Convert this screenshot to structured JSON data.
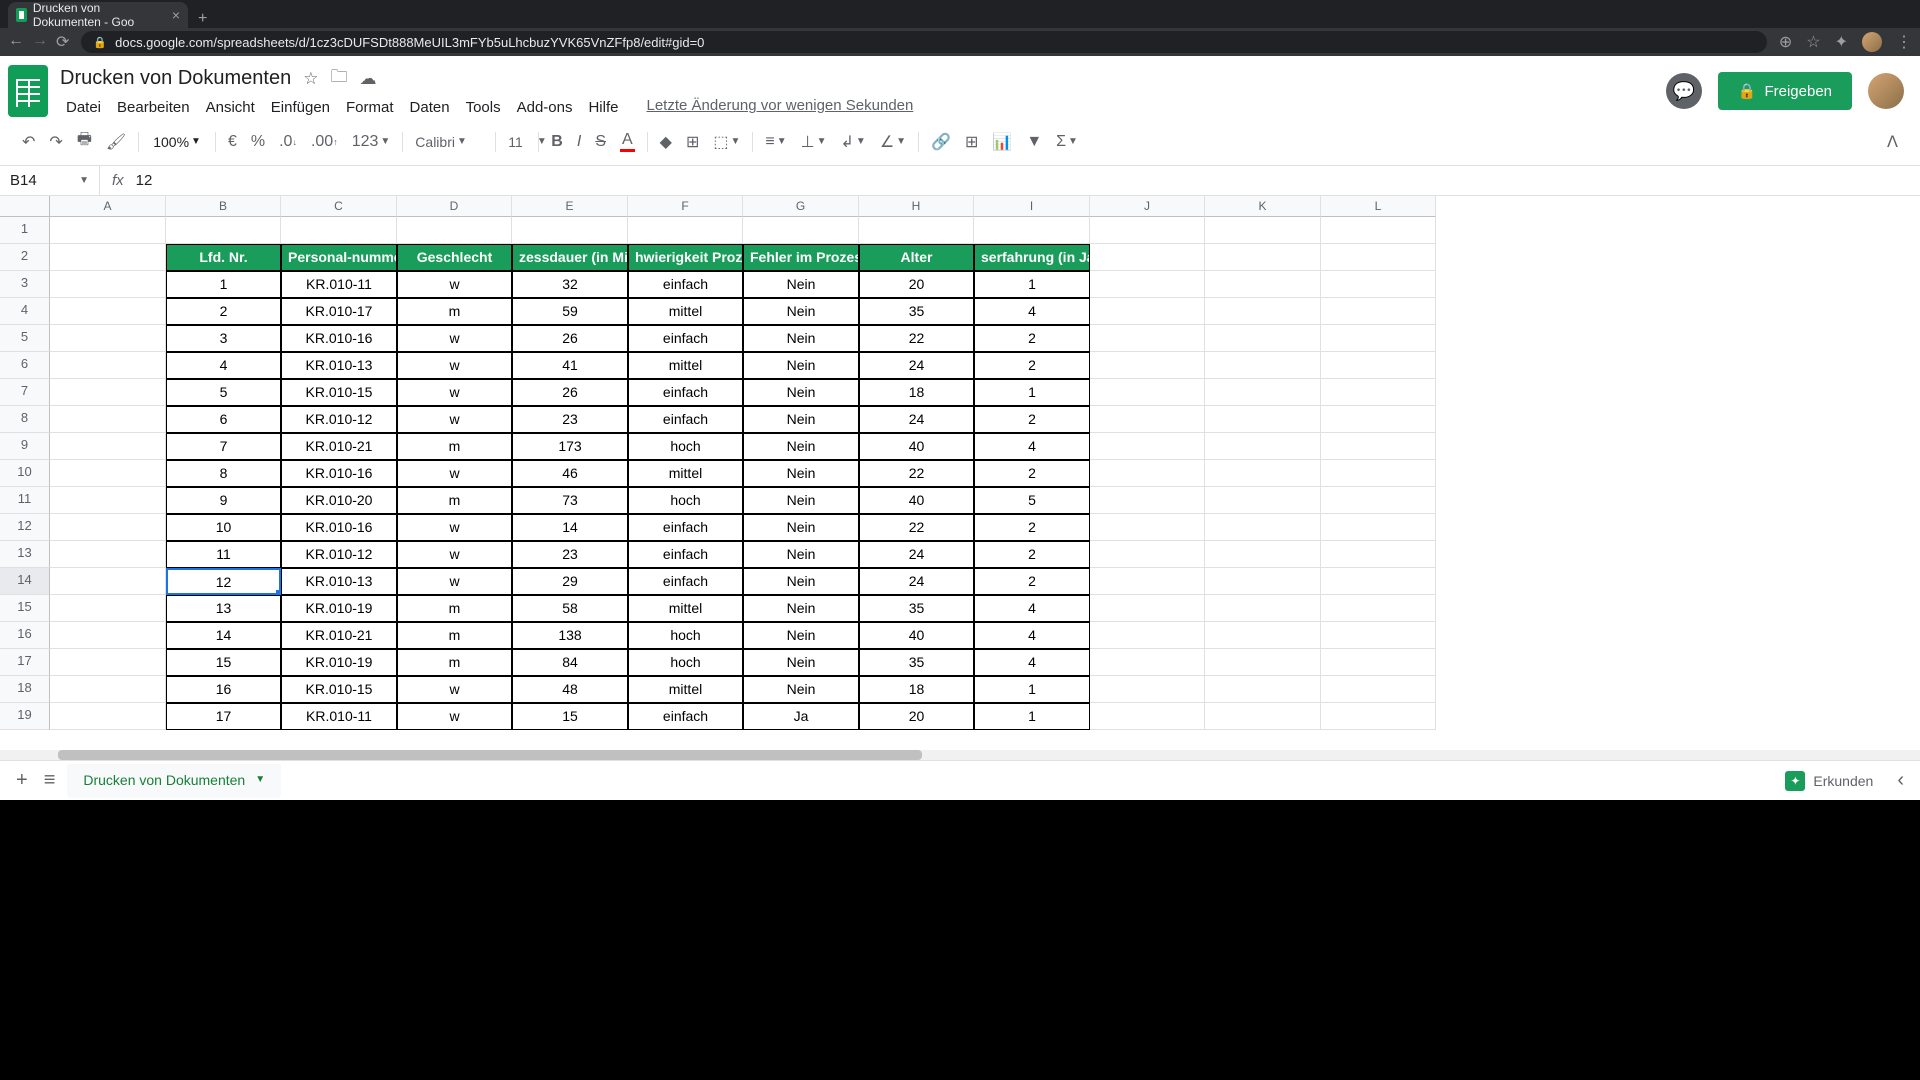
{
  "browser": {
    "tab_title": "Drucken von Dokumenten - Goo",
    "url": "docs.google.com/spreadsheets/d/1cz3cDUFSDt888MeUIL3mFYb5uLhcbuzYVK65VnZFfp8/edit#gid=0"
  },
  "doc": {
    "title": "Drucken von Dokumenten",
    "last_edit": "Letzte Änderung vor wenigen Sekunden",
    "share": "Freigeben"
  },
  "menu": [
    "Datei",
    "Bearbeiten",
    "Ansicht",
    "Einfügen",
    "Format",
    "Daten",
    "Tools",
    "Add-ons",
    "Hilfe"
  ],
  "toolbar": {
    "zoom": "100%",
    "currency": "€",
    "percent": "%",
    "dec_dec": ".0",
    "dec_inc": ".00",
    "format": "123",
    "font": "Calibri",
    "size": "11"
  },
  "formula": {
    "ref": "B14",
    "value": "12"
  },
  "columns": [
    "A",
    "B",
    "C",
    "D",
    "E",
    "F",
    "G",
    "H",
    "I",
    "J",
    "K",
    "L"
  ],
  "row_count": 19,
  "selected_row": 14,
  "data_start_col": 1,
  "data_header_row": 2,
  "headers": [
    "Lfd. Nr.",
    "Personal-nummer",
    "Geschlecht",
    "zessdauer (in Min",
    "hwierigkeit Proze",
    "Fehler im Prozess",
    "Alter",
    "serfahrung (in Ja"
  ],
  "header_display": [
    "Lfd. Nr.",
    "Personal-numme",
    "Geschlecht",
    "zessdauer (in Mi",
    "hwierigkeit Proze",
    "Fehler im Prozess",
    "Alter",
    "serfahrung (in Ja"
  ],
  "rows": [
    [
      "1",
      "KR.010-11",
      "w",
      "32",
      "einfach",
      "Nein",
      "20",
      "1"
    ],
    [
      "2",
      "KR.010-17",
      "m",
      "59",
      "mittel",
      "Nein",
      "35",
      "4"
    ],
    [
      "3",
      "KR.010-16",
      "w",
      "26",
      "einfach",
      "Nein",
      "22",
      "2"
    ],
    [
      "4",
      "KR.010-13",
      "w",
      "41",
      "mittel",
      "Nein",
      "24",
      "2"
    ],
    [
      "5",
      "KR.010-15",
      "w",
      "26",
      "einfach",
      "Nein",
      "18",
      "1"
    ],
    [
      "6",
      "KR.010-12",
      "w",
      "23",
      "einfach",
      "Nein",
      "24",
      "2"
    ],
    [
      "7",
      "KR.010-21",
      "m",
      "173",
      "hoch",
      "Nein",
      "40",
      "4"
    ],
    [
      "8",
      "KR.010-16",
      "w",
      "46",
      "mittel",
      "Nein",
      "22",
      "2"
    ],
    [
      "9",
      "KR.010-20",
      "m",
      "73",
      "hoch",
      "Nein",
      "40",
      "5"
    ],
    [
      "10",
      "KR.010-16",
      "w",
      "14",
      "einfach",
      "Nein",
      "22",
      "2"
    ],
    [
      "11",
      "KR.010-12",
      "w",
      "23",
      "einfach",
      "Nein",
      "24",
      "2"
    ],
    [
      "12",
      "KR.010-13",
      "w",
      "29",
      "einfach",
      "Nein",
      "24",
      "2"
    ],
    [
      "13",
      "KR.010-19",
      "m",
      "58",
      "mittel",
      "Nein",
      "35",
      "4"
    ],
    [
      "14",
      "KR.010-21",
      "m",
      "138",
      "hoch",
      "Nein",
      "40",
      "4"
    ],
    [
      "15",
      "KR.010-19",
      "m",
      "84",
      "hoch",
      "Nein",
      "35",
      "4"
    ],
    [
      "16",
      "KR.010-15",
      "w",
      "48",
      "mittel",
      "Nein",
      "18",
      "1"
    ],
    [
      "17",
      "KR.010-11",
      "w",
      "15",
      "einfach",
      "Ja",
      "20",
      "1"
    ]
  ],
  "sheet_tab": "Drucken von Dokumenten",
  "explore": "Erkunden",
  "colors": {
    "header_bg": "#1a9c5b",
    "share_bg": "#1a9c5b",
    "selection": "#1a73e8"
  }
}
